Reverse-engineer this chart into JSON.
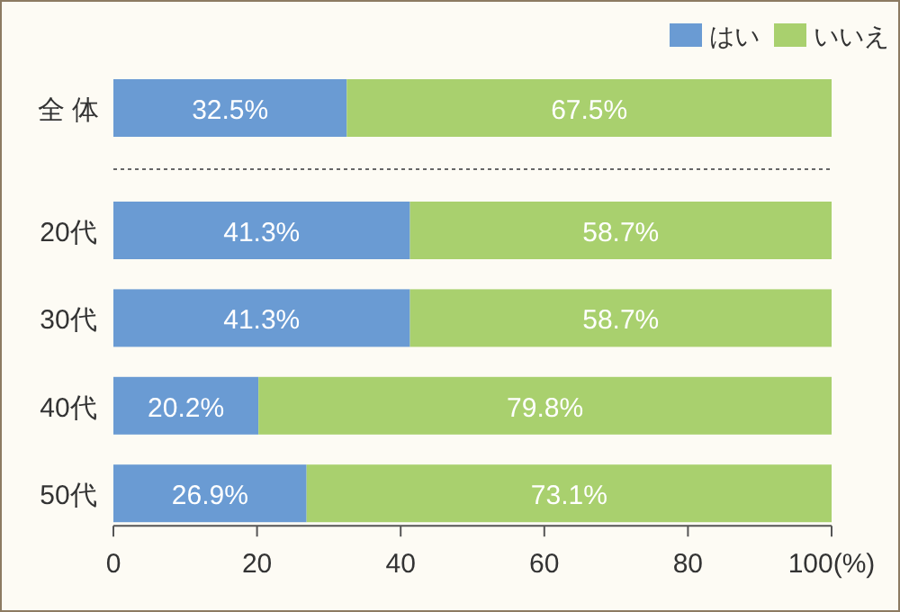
{
  "chart_data": {
    "type": "bar",
    "orientation": "horizontal",
    "stacked": true,
    "categories": [
      "全 体",
      "20代",
      "30代",
      "40代",
      "50代"
    ],
    "series": [
      {
        "name": "はい",
        "color": "#6a9bd3",
        "values": [
          32.5,
          41.3,
          41.3,
          20.2,
          26.9
        ],
        "value_labels": [
          "32.5%",
          "41.3%",
          "41.3%",
          "20.2%",
          "26.9%"
        ]
      },
      {
        "name": "いいえ",
        "color": "#a9d06e",
        "values": [
          67.5,
          58.7,
          58.7,
          79.8,
          73.1
        ],
        "value_labels": [
          "67.5%",
          "58.7%",
          "58.7%",
          "79.8%",
          "73.1%"
        ]
      }
    ],
    "xlim": [
      0,
      100
    ],
    "xticks": [
      0,
      20,
      40,
      60,
      80,
      {
        "value": 100,
        "label": "100(%)"
      }
    ],
    "legend": "top right",
    "grid": false
  }
}
